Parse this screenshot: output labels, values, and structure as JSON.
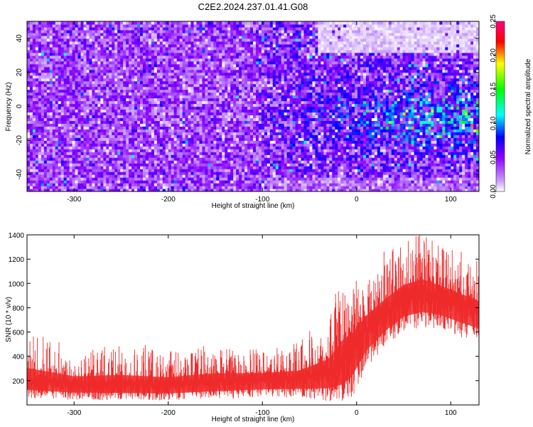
{
  "title": "C2E2.2024.237.01.41.G08",
  "chart_data": [
    {
      "type": "heatmap",
      "title": "C2E2.2024.237.01.41.G08",
      "xlabel": "Height of straight line (km)",
      "ylabel": "Frequency (Hz)",
      "xlim": [
        -350,
        130
      ],
      "ylim": [
        -50,
        50
      ],
      "x_ticks": [
        -300,
        -200,
        -100,
        0,
        100
      ],
      "y_ticks": [
        -40,
        -20,
        0,
        20,
        40
      ],
      "colorbar": {
        "label": "Normalized spectral amplitude",
        "range": [
          0,
          0.25
        ],
        "ticks": [
          "0.00",
          "0.05",
          "0.10",
          "0.15",
          "0.20",
          "0.25"
        ],
        "colors": [
          "#ffffff",
          "#8a00ff",
          "#0000ff",
          "#00ffff",
          "#00ff00",
          "#ffff00",
          "#ff0000",
          "#ff0080"
        ]
      },
      "regions": [
        {
          "x_range": [
            -350,
            -100
          ],
          "f_range": [
            -50,
            50
          ],
          "typical_amplitude": 0.05,
          "peak_amplitude": 0.12
        },
        {
          "x_range": [
            -100,
            0
          ],
          "f_range": [
            -50,
            30
          ],
          "typical_amplitude": 0.07,
          "peak_amplitude": 0.15
        },
        {
          "x_range": [
            0,
            130
          ],
          "f_range": [
            -40,
            20
          ],
          "typical_amplitude": 0.09,
          "peak_amplitude": 0.22
        },
        {
          "x_range": [
            -30,
            130
          ],
          "f_range": [
            32,
            50
          ],
          "typical_amplitude": 0.01,
          "peak_amplitude": 0.03
        }
      ]
    },
    {
      "type": "line",
      "xlabel": "Height of straight line (km)",
      "ylabel": "SNR (10 * v/v)",
      "xlim": [
        -350,
        130
      ],
      "ylim": [
        0,
        1400
      ],
      "x_ticks": [
        -300,
        -200,
        -100,
        0,
        100
      ],
      "y_ticks": [
        200,
        400,
        600,
        800,
        1000,
        1200,
        1400
      ],
      "grid": false,
      "series": [
        {
          "color": "#ee2a2a",
          "x": [
            -350,
            -300,
            -250,
            -200,
            -150,
            -100,
            -60,
            -30,
            -15,
            -5,
            10,
            30,
            50,
            70,
            90,
            110,
            130
          ],
          "y_mean": [
            200,
            175,
            170,
            165,
            190,
            210,
            220,
            270,
            350,
            480,
            620,
            760,
            880,
            920,
            880,
            830,
            780
          ],
          "y_min": [
            60,
            40,
            40,
            35,
            50,
            60,
            60,
            30,
            20,
            30,
            300,
            480,
            600,
            640,
            620,
            560,
            500
          ],
          "y_max": [
            620,
            420,
            480,
            420,
            480,
            420,
            480,
            700,
            1080,
            900,
            1080,
            1200,
            1320,
            1380,
            1280,
            1180,
            1080
          ]
        }
      ]
    }
  ]
}
